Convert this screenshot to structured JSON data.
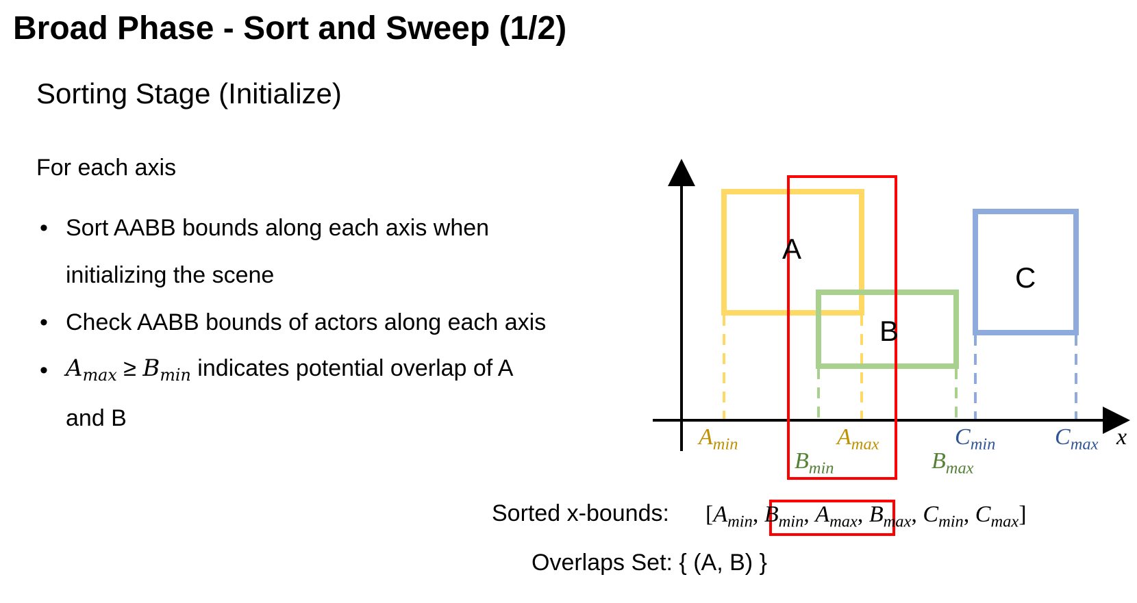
{
  "slide": {
    "title": "Broad Phase - Sort and Sweep (1/2)",
    "subtitle": "Sorting Stage (Initialize)",
    "intro": "For each axis",
    "bullets": [
      {
        "text": "Sort AABB bounds along each axis when"
      },
      {
        "text": "initializing the scene"
      },
      {
        "text": "Check AABB bounds of actors along each axis"
      },
      {
        "math_a": "A",
        "math_a_sub": "max",
        "op": "≥",
        "math_b": "B",
        "math_b_sub": "min",
        "text": "indicates potential overlap of A"
      },
      {
        "text": "and B"
      }
    ],
    "bullet_char": "•"
  },
  "diagram": {
    "boxes": [
      {
        "label": "A",
        "color": "#FFD966"
      },
      {
        "label": "B",
        "color": "#A9D18E"
      },
      {
        "label": "C",
        "color": "#8FAADC"
      }
    ],
    "highlight_color": "#FF0000",
    "axis_label": "x",
    "bounds": [
      {
        "base": "A",
        "sub": "min",
        "color": "#BF9000"
      },
      {
        "base": "A",
        "sub": "max",
        "color": "#BF9000"
      },
      {
        "base": "B",
        "sub": "min",
        "color": "#538135"
      },
      {
        "base": "B",
        "sub": "max",
        "color": "#538135"
      },
      {
        "base": "C",
        "sub": "min",
        "color": "#2F5597"
      },
      {
        "base": "C",
        "sub": "max",
        "color": "#2F5597"
      }
    ]
  },
  "sorted": {
    "label": "Sorted x-bounds:",
    "open": "[",
    "close": "]",
    "sep": ",",
    "items": [
      {
        "base": "A",
        "sub": "min"
      },
      {
        "base": "B",
        "sub": "min"
      },
      {
        "base": "A",
        "sub": "max"
      },
      {
        "base": "B",
        "sub": "max"
      },
      {
        "base": "C",
        "sub": "min"
      },
      {
        "base": "C",
        "sub": "max"
      }
    ]
  },
  "overlaps": "Overlaps Set: { (A, B) }"
}
